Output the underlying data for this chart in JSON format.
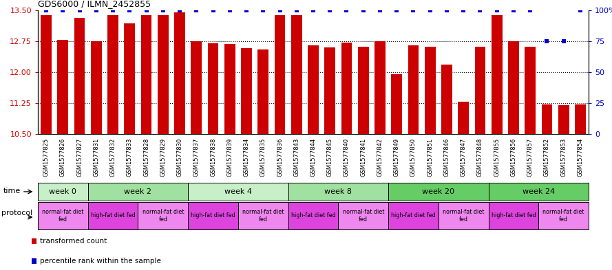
{
  "title": "GDS6000 / ILMN_2452855",
  "samples": [
    "GSM1577825",
    "GSM1577826",
    "GSM1577827",
    "GSM1577831",
    "GSM1577832",
    "GSM1577833",
    "GSM1577828",
    "GSM1577829",
    "GSM1577830",
    "GSM1577837",
    "GSM1577838",
    "GSM1577839",
    "GSM1577834",
    "GSM1577835",
    "GSM1577836",
    "GSM1577843",
    "GSM1577844",
    "GSM1577845",
    "GSM1577840",
    "GSM1577841",
    "GSM1577842",
    "GSM1577849",
    "GSM1577850",
    "GSM1577851",
    "GSM1577846",
    "GSM1577847",
    "GSM1577848",
    "GSM1577855",
    "GSM1577856",
    "GSM1577857",
    "GSM1577852",
    "GSM1577853",
    "GSM1577854"
  ],
  "bar_values": [
    13.38,
    12.78,
    13.32,
    12.75,
    13.38,
    13.18,
    13.38,
    13.38,
    13.45,
    12.75,
    12.7,
    12.68,
    12.58,
    12.55,
    13.38,
    13.38,
    12.65,
    12.6,
    12.72,
    12.62,
    12.75,
    11.95,
    12.65,
    12.62,
    12.18,
    11.28,
    12.62,
    13.38,
    12.75,
    12.62,
    11.22,
    11.2,
    11.22
  ],
  "percentile_values": [
    100,
    100,
    100,
    100,
    100,
    100,
    100,
    100,
    100,
    100,
    100,
    100,
    100,
    100,
    100,
    100,
    100,
    100,
    100,
    100,
    100,
    100,
    100,
    100,
    100,
    100,
    100,
    100,
    100,
    100,
    75,
    75,
    100
  ],
  "bar_color": "#cc0000",
  "percentile_color": "#0000cc",
  "ylim_left": [
    10.5,
    13.5
  ],
  "ylim_right": [
    0,
    100
  ],
  "yticks_left": [
    10.5,
    11.25,
    12.0,
    12.75,
    13.5
  ],
  "yticks_right": [
    0,
    25,
    50,
    75,
    100
  ],
  "grid_lines": [
    11.25,
    12.0,
    12.75
  ],
  "time_groups": [
    {
      "label": "week 0",
      "start": 0,
      "end": 3,
      "color": "#c8f0c8"
    },
    {
      "label": "week 2",
      "start": 3,
      "end": 9,
      "color": "#a0e0a0"
    },
    {
      "label": "week 4",
      "start": 9,
      "end": 15,
      "color": "#c8f0c8"
    },
    {
      "label": "week 8",
      "start": 15,
      "end": 21,
      "color": "#a0e0a0"
    },
    {
      "label": "week 20",
      "start": 21,
      "end": 27,
      "color": "#66cc66"
    },
    {
      "label": "week 24",
      "start": 27,
      "end": 33,
      "color": "#66cc66"
    }
  ],
  "protocol_groups": [
    {
      "label": "normal-fat diet\nfed",
      "start": 0,
      "end": 3,
      "color": "#ee88ee"
    },
    {
      "label": "high-fat diet fed",
      "start": 3,
      "end": 6,
      "color": "#dd44dd"
    },
    {
      "label": "normal-fat diet\nfed",
      "start": 6,
      "end": 9,
      "color": "#ee88ee"
    },
    {
      "label": "high-fat diet fed",
      "start": 9,
      "end": 12,
      "color": "#dd44dd"
    },
    {
      "label": "normal-fat diet\nfed",
      "start": 12,
      "end": 15,
      "color": "#ee88ee"
    },
    {
      "label": "high-fat diet fed",
      "start": 15,
      "end": 18,
      "color": "#dd44dd"
    },
    {
      "label": "normal-fat diet\nfed",
      "start": 18,
      "end": 21,
      "color": "#ee88ee"
    },
    {
      "label": "high-fat diet fed",
      "start": 21,
      "end": 24,
      "color": "#dd44dd"
    },
    {
      "label": "normal-fat diet\nfed",
      "start": 24,
      "end": 27,
      "color": "#ee88ee"
    },
    {
      "label": "high-fat diet fed",
      "start": 27,
      "end": 30,
      "color": "#dd44dd"
    },
    {
      "label": "normal-fat diet\nfed",
      "start": 30,
      "end": 33,
      "color": "#ee88ee"
    }
  ],
  "background_color": "#ffffff",
  "tick_label_color_left": "#cc0000",
  "tick_label_color_right": "#0000cc",
  "tick_bg_color": "#c8c8c8",
  "figsize": [
    8.89,
    3.93
  ],
  "dpi": 100
}
